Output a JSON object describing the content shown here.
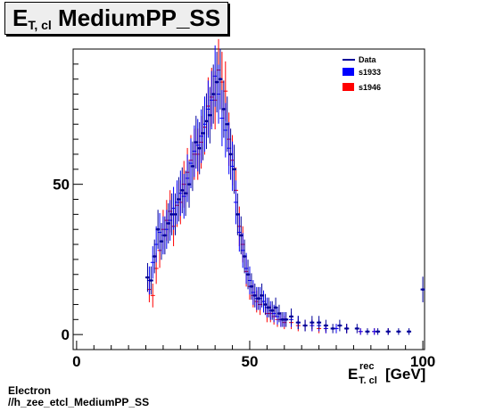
{
  "title": {
    "main": "E",
    "sub": "T, cl",
    "rest": " MediumPP_SS"
  },
  "footer": {
    "line1": "Electron",
    "line2": "//h_zee_etcl_MediumPP_SS"
  },
  "colors": {
    "data": "#000099",
    "s1933": "#0000ff",
    "s1946": "#ff0000"
  },
  "chart_data": {
    "type": "scatter",
    "title": "E_T, cl MediumPP_SS",
    "xlabel": "E_T, cl^rec [GeV]",
    "xlabel_parts": {
      "main": "E",
      "sup": "rec",
      "sub": "T, cl",
      "unit": "[GeV]"
    },
    "ylabel": "",
    "xlim": [
      -1,
      100.5
    ],
    "ylim": [
      -5,
      95
    ],
    "x_ticks": [
      0,
      50,
      100
    ],
    "y_ticks": [
      0,
      50
    ],
    "legend": {
      "position": "top-right",
      "entries": [
        "Data",
        "s1933",
        "s1946"
      ]
    },
    "series": [
      {
        "name": "Data",
        "style": "errorbar",
        "x": [
          20.5,
          21.5,
          22.5,
          23.5,
          24.5,
          25.5,
          26.5,
          27.5,
          28.5,
          29.5,
          30.5,
          31.5,
          32.5,
          33.5,
          34.5,
          35.5,
          36.5,
          37.5,
          38.5,
          39.5,
          40.5,
          41.5,
          42.5,
          43.5,
          44.5,
          45.5,
          46.5,
          47.5,
          48.5,
          49.5,
          50.5,
          51.5,
          52.5,
          53.5,
          54.5,
          55.5,
          56.5,
          57.5,
          58.5,
          59.5,
          60.5,
          62,
          64,
          66,
          68,
          70,
          72,
          74,
          76,
          78,
          81,
          84,
          87,
          90,
          93,
          96,
          100
        ],
        "y": [
          19,
          18,
          26,
          35,
          31,
          33,
          37,
          40,
          40,
          45,
          48,
          47,
          50,
          56,
          64,
          62,
          67,
          71,
          73,
          80,
          84,
          85,
          75,
          70,
          60,
          55,
          40,
          33,
          26,
          20,
          16,
          13,
          12,
          13,
          10,
          9,
          8,
          9,
          7,
          5,
          5,
          6,
          4,
          3,
          4,
          4,
          3,
          2,
          3,
          2,
          2,
          1,
          1,
          1,
          1,
          1,
          15
        ]
      },
      {
        "name": "s1933",
        "style": "errorbar",
        "x": [
          21,
          22,
          23,
          24,
          25,
          26,
          27,
          28,
          29,
          30,
          31,
          32,
          33,
          34,
          35,
          36,
          37,
          38,
          39,
          40,
          41,
          42,
          43,
          44,
          45,
          46,
          47,
          48,
          49,
          50,
          51,
          52,
          53,
          54,
          55,
          56,
          57,
          58,
          59,
          60,
          62,
          64,
          66,
          68,
          70,
          72,
          75,
          78,
          82,
          86,
          90
        ],
        "y": [
          18,
          24,
          30,
          34,
          33,
          35,
          38,
          42,
          44,
          47,
          46,
          52,
          57,
          61,
          63,
          66,
          70,
          75,
          78,
          86,
          80,
          72,
          68,
          62,
          56,
          44,
          34,
          28,
          22,
          18,
          14,
          12,
          12,
          11,
          9,
          8,
          7,
          6,
          5,
          5,
          5,
          4,
          3,
          3,
          3,
          2,
          2,
          2,
          1,
          1,
          1
        ]
      },
      {
        "name": "s1946",
        "style": "errorbar",
        "x": [
          21,
          22,
          23,
          24,
          25,
          26,
          27,
          28,
          29,
          30,
          31,
          32,
          33,
          34,
          35,
          36,
          37,
          38,
          39,
          40,
          41,
          42,
          43,
          44,
          45,
          46,
          47,
          48,
          49,
          50,
          51,
          52,
          53,
          54,
          55,
          56,
          57,
          58,
          59,
          60,
          62,
          64,
          66,
          68,
          70,
          72,
          75,
          78,
          82,
          86,
          90
        ],
        "y": [
          15,
          13,
          22,
          28,
          35,
          38,
          41,
          36,
          43,
          44,
          50,
          54,
          58,
          60,
          60,
          64,
          69,
          76,
          79,
          78,
          88,
          84,
          81,
          65,
          58,
          48,
          36,
          30,
          21,
          16,
          13,
          11,
          10,
          11,
          7,
          7,
          6,
          5,
          5,
          4,
          4,
          3,
          3,
          3,
          2,
          2,
          2,
          2,
          1,
          1,
          1
        ]
      }
    ]
  }
}
